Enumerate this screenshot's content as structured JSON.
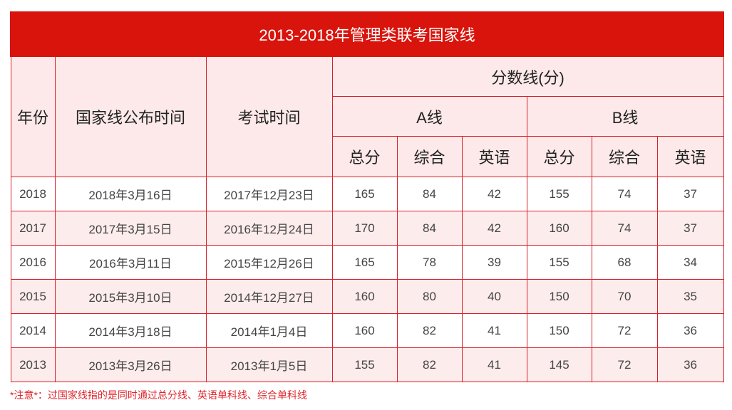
{
  "title": "2013-2018年管理类联考国家线",
  "headers": {
    "year": "年份",
    "publish_time": "国家线公布时间",
    "exam_time": "考试时间",
    "score_line": "分数线(分)",
    "a_line": "A线",
    "b_line": "B线",
    "total": "总分",
    "comprehensive": "综合",
    "english": "英语"
  },
  "rows": [
    {
      "year": "2018",
      "publish": "2018年3月16日",
      "exam": "2017年12月23日",
      "a_total": "165",
      "a_comp": "84",
      "a_eng": "42",
      "b_total": "155",
      "b_comp": "74",
      "b_eng": "37"
    },
    {
      "year": "2017",
      "publish": "2017年3月15日",
      "exam": "2016年12月24日",
      "a_total": "170",
      "a_comp": "84",
      "a_eng": "42",
      "b_total": "160",
      "b_comp": "74",
      "b_eng": "37"
    },
    {
      "year": "2016",
      "publish": "2016年3月11日",
      "exam": "2015年12月26日",
      "a_total": "165",
      "a_comp": "78",
      "a_eng": "39",
      "b_total": "155",
      "b_comp": "68",
      "b_eng": "34"
    },
    {
      "year": "2015",
      "publish": "2015年3月10日",
      "exam": "2014年12月27日",
      "a_total": "160",
      "a_comp": "80",
      "a_eng": "40",
      "b_total": "150",
      "b_comp": "70",
      "b_eng": "35"
    },
    {
      "year": "2014",
      "publish": "2014年3月18日",
      "exam": "2014年1月4日",
      "a_total": "160",
      "a_comp": "82",
      "a_eng": "41",
      "b_total": "150",
      "b_comp": "72",
      "b_eng": "36"
    },
    {
      "year": "2013",
      "publish": "2013年3月26日",
      "exam": "2013年1月5日",
      "a_total": "155",
      "a_comp": "82",
      "a_eng": "41",
      "b_total": "145",
      "b_comp": "72",
      "b_eng": "36"
    }
  ],
  "note": "*注意*：过国家线指的是同时通过总分线、英语单科线、综合单科线",
  "colors": {
    "accent": "#d8140c",
    "row_alt": "#fdecec",
    "border": "#d8202a"
  }
}
